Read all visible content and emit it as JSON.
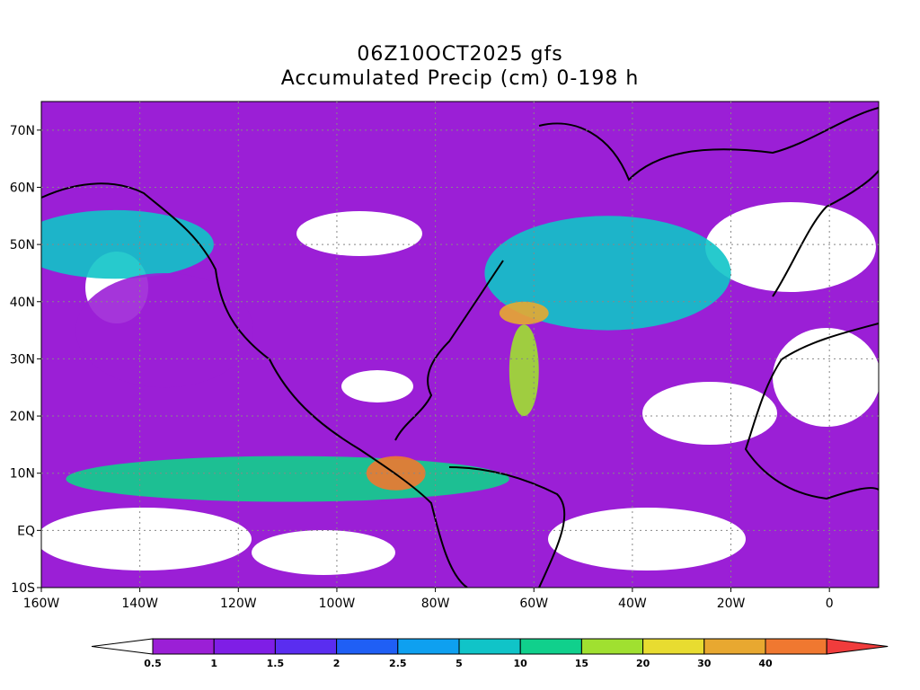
{
  "title": {
    "line1": "06Z10OCT2025 gfs",
    "line2": "Accumulated Precip (cm) 0-198 h"
  },
  "map": {
    "lon_range": [
      -160,
      10
    ],
    "lat_range": [
      -10,
      75
    ],
    "lat_ticks": [
      {
        "value": 70,
        "label": "70N"
      },
      {
        "value": 60,
        "label": "60N"
      },
      {
        "value": 50,
        "label": "50N"
      },
      {
        "value": 40,
        "label": "40N"
      },
      {
        "value": 30,
        "label": "30N"
      },
      {
        "value": 20,
        "label": "20N"
      },
      {
        "value": 10,
        "label": "10N"
      },
      {
        "value": 0,
        "label": "EQ"
      },
      {
        "value": -10,
        "label": "10S"
      }
    ],
    "lon_ticks": [
      {
        "value": -160,
        "label": "160W"
      },
      {
        "value": -140,
        "label": "140W"
      },
      {
        "value": -120,
        "label": "120W"
      },
      {
        "value": -100,
        "label": "100W"
      },
      {
        "value": -80,
        "label": "80W"
      },
      {
        "value": -60,
        "label": "60W"
      },
      {
        "value": -40,
        "label": "40W"
      },
      {
        "value": -20,
        "label": "20W"
      },
      {
        "value": 0,
        "label": "0"
      }
    ],
    "grid": "dotted"
  },
  "colorbar": {
    "levels": [
      "0.5",
      "1",
      "1.5",
      "2",
      "2.5",
      "5",
      "10",
      "15",
      "20",
      "30",
      "40"
    ],
    "colors": [
      "#ffffff",
      "#9b1fd6",
      "#7f1ee6",
      "#5a2df0",
      "#1f5ff5",
      "#0ea0f0",
      "#10c4c8",
      "#10d08c",
      "#a0e030",
      "#e8dc30",
      "#e8a830",
      "#f07830",
      "#f03c3c"
    ]
  },
  "precip_regions": [
    {
      "name": "itcz-pacific",
      "color": "#10d08c",
      "lon": -110,
      "lat": 9,
      "rlon": 45,
      "rlat": 4
    },
    {
      "name": "central-america-max",
      "color": "#f07830",
      "lon": -88,
      "lat": 10,
      "rlon": 6,
      "rlat": 3
    },
    {
      "name": "atlantic-storm-track",
      "color": "#10c4c8",
      "lon": -45,
      "lat": 45,
      "rlon": 25,
      "rlat": 10
    },
    {
      "name": "west-atlantic-max",
      "color": "#e8a830",
      "lon": -62,
      "lat": 38,
      "rlon": 5,
      "rlat": 2
    },
    {
      "name": "caribbean-band",
      "color": "#a0e030",
      "lon": -62,
      "lat": 28,
      "rlon": 3,
      "rlat": 8
    },
    {
      "name": "north-pacific",
      "color": "#10c4c8",
      "lon": -145,
      "lat": 50,
      "rlon": 20,
      "rlat": 6
    },
    {
      "name": "east-pacific",
      "color": "#9b1fd6",
      "lon": -135,
      "lat": 35,
      "rlon": 18,
      "rlat": 10
    }
  ]
}
